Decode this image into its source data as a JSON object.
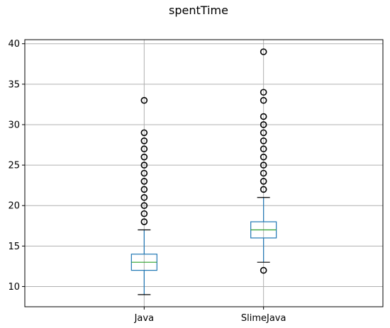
{
  "chart_data": {
    "type": "box",
    "title": "spentTime",
    "xlabel": "",
    "ylabel": "",
    "ylim": [
      7.5,
      40.5
    ],
    "yticks": [
      10,
      15,
      20,
      25,
      30,
      35,
      40
    ],
    "grid": true,
    "categories": [
      "Java",
      "SlimeJava"
    ],
    "boxes": [
      {
        "category": "Java",
        "whisker_low": 9,
        "q1": 12,
        "median": 13,
        "q3": 14,
        "whisker_high": 17,
        "outliers": [
          18,
          19,
          20,
          21,
          22,
          23,
          24,
          25,
          26,
          27,
          28,
          29,
          33
        ]
      },
      {
        "category": "SlimeJava",
        "whisker_low": 13,
        "q1": 16,
        "median": 17,
        "q3": 18,
        "whisker_high": 21,
        "outliers": [
          12,
          22,
          23,
          24,
          25,
          26,
          27,
          28,
          29,
          30,
          31,
          33,
          34,
          39
        ]
      }
    ],
    "colors": {
      "box": "#1f77b4",
      "median": "#2ca02c",
      "whisker": "#1f77b4",
      "outlier": "#000000",
      "grid": "#b0b0b0",
      "axes": "#000000"
    }
  }
}
